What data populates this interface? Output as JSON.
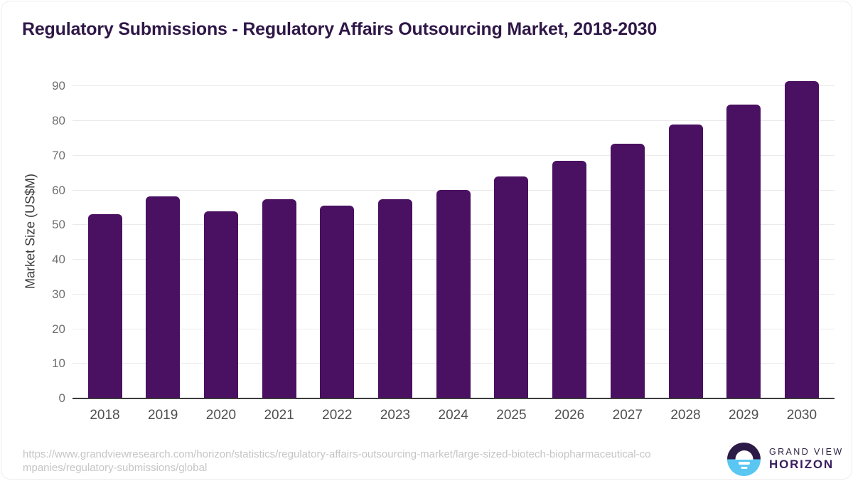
{
  "title": "Regulatory Submissions - Regulatory Affairs Outsourcing Market, 2018-2030",
  "chart_data": {
    "type": "bar",
    "title": "Regulatory Submissions - Regulatory Affairs Outsourcing Market, 2018-2030",
    "categories": [
      "2018",
      "2019",
      "2020",
      "2021",
      "2022",
      "2023",
      "2024",
      "2025",
      "2026",
      "2027",
      "2028",
      "2029",
      "2030"
    ],
    "values": [
      53.1,
      58.3,
      54.0,
      57.5,
      55.7,
      57.4,
      60.2,
      64.0,
      68.6,
      73.5,
      78.9,
      84.7,
      91.5
    ],
    "xlabel": "",
    "ylabel": "Market Size (US$M)",
    "ylim": [
      0,
      95
    ],
    "yticks": [
      0,
      10,
      20,
      30,
      40,
      50,
      60,
      70,
      80,
      90
    ],
    "grid": true,
    "legend": false,
    "bar_color": "#4a1061"
  },
  "footer": {
    "source_url": "https://www.grandviewresearch.com/horizon/statistics/regulatory-affairs-outsourcing-market/large-sized-biotech-biopharmaceutical-companies/regulatory-submissions/global",
    "logo": {
      "line1": "GRAND VIEW",
      "line2": "HORIZON"
    }
  },
  "colors": {
    "bar": "#4a1061",
    "title_text": "#2f1747",
    "gridline": "#eaeaea",
    "axis_line": "#3b3b3b",
    "y_tick_text": "#6f6f6f",
    "x_tick_text": "#4f4f4f",
    "source_url_text": "#c5c5c5",
    "logo_dark": "#2c1b47",
    "logo_blue": "#5ac7f2"
  }
}
